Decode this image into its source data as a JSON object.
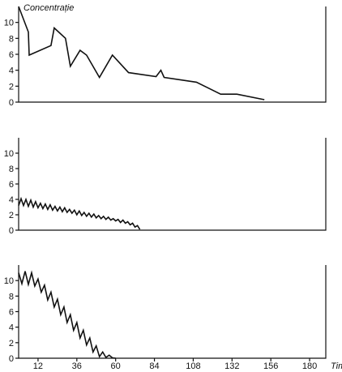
{
  "chart_data": [
    {
      "type": "line",
      "ylabel": "Concentrație",
      "xlim": [
        0,
        190
      ],
      "ylim": [
        0,
        12
      ],
      "yticks": [
        0,
        2,
        4,
        6,
        8,
        10
      ],
      "series": [
        {
          "x": [
            0,
            6,
            6.5,
            20,
            22,
            29,
            32,
            38,
            42,
            50,
            58,
            68,
            85,
            88,
            90,
            110,
            125,
            135,
            152
          ],
          "y": [
            12,
            8.8,
            5.9,
            7.1,
            9.3,
            8.0,
            4.5,
            6.5,
            5.9,
            3.1,
            5.9,
            3.7,
            3.2,
            4.0,
            3.1,
            2.5,
            1.0,
            1.0,
            0.3
          ]
        }
      ]
    },
    {
      "type": "line",
      "xlim": [
        0,
        190
      ],
      "ylim": [
        0,
        12
      ],
      "yticks": [
        0,
        2,
        4,
        6,
        8,
        10
      ],
      "series": [
        {
          "x": [
            0,
            1.5,
            3,
            4.5,
            6,
            7.5,
            9,
            10.5,
            12,
            13.5,
            15,
            16.5,
            18,
            19.5,
            21,
            22.5,
            24,
            25.5,
            27,
            28.5,
            30,
            31.5,
            33,
            34.5,
            36,
            37.5,
            39,
            40.5,
            42,
            43.5,
            45,
            46.5,
            48,
            49.5,
            51,
            52.5,
            54,
            55.5,
            57,
            58.5,
            60,
            61.5,
            63,
            64.5,
            66,
            67.5,
            69,
            70.5,
            72,
            73.5,
            75
          ],
          "y": [
            3.2,
            4.1,
            3.2,
            4.0,
            3.1,
            3.9,
            3.0,
            3.7,
            2.9,
            3.5,
            2.8,
            3.4,
            2.7,
            3.3,
            2.6,
            3.1,
            2.5,
            3.0,
            2.4,
            2.9,
            2.3,
            2.7,
            2.2,
            2.6,
            2.0,
            2.5,
            1.9,
            2.3,
            1.8,
            2.2,
            1.7,
            2.1,
            1.6,
            1.9,
            1.5,
            1.8,
            1.4,
            1.7,
            1.3,
            1.5,
            1.2,
            1.4,
            1.0,
            1.3,
            0.9,
            1.1,
            0.7,
            0.9,
            0.4,
            0.6,
            0.1
          ]
        }
      ]
    },
    {
      "type": "line",
      "xlabel": "Timp",
      "xlim": [
        0,
        190
      ],
      "ylim": [
        0,
        12
      ],
      "xticks": [
        12,
        36,
        60,
        84,
        108,
        132,
        156,
        180
      ],
      "yticks": [
        0,
        2,
        4,
        6,
        8,
        10
      ],
      "series": [
        {
          "x": [
            0,
            2,
            4,
            6,
            8,
            10,
            12,
            14,
            16,
            18,
            20,
            22,
            24,
            26,
            28,
            30,
            32,
            34,
            36,
            38,
            40,
            42,
            44,
            46,
            48,
            50,
            52,
            54,
            56,
            58,
            60
          ],
          "y": [
            11.0,
            9.6,
            11.2,
            9.5,
            11.0,
            9.3,
            10.2,
            8.5,
            9.4,
            7.5,
            8.5,
            6.6,
            7.6,
            5.6,
            6.6,
            4.6,
            5.6,
            3.6,
            4.6,
            2.6,
            3.6,
            1.7,
            2.6,
            0.8,
            1.6,
            0.2,
            0.8,
            0.1,
            0.4,
            0.05,
            0.0
          ]
        }
      ]
    }
  ]
}
